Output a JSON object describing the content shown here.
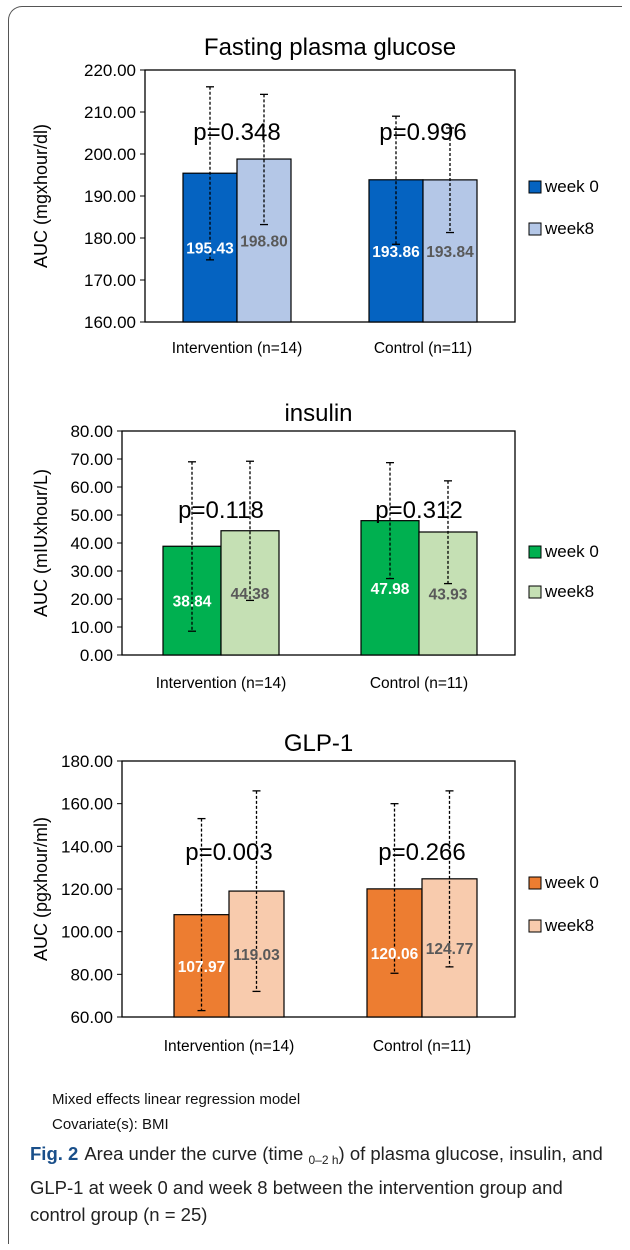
{
  "chart_data": [
    {
      "type": "bar",
      "title": "Fasting plasma glucose",
      "ylabel": "AUC (mgxhour/dl)",
      "ylim": [
        160,
        220
      ],
      "yticks": [
        "160.00",
        "170.00",
        "180.00",
        "190.00",
        "200.00",
        "210.00",
        "220.00"
      ],
      "categories": [
        "Intervention (n=14)",
        "Control (n=11)"
      ],
      "series": [
        {
          "name": "week 0",
          "values": [
            195.43,
            193.86
          ],
          "labels": [
            "195.43",
            "193.86"
          ],
          "err_low": [
            174.8,
            178.5
          ],
          "err_high": [
            216.0,
            209.0
          ]
        },
        {
          "name": "week8",
          "values": [
            198.8,
            193.84
          ],
          "labels": [
            "198.80",
            "193.84"
          ],
          "err_low": [
            183.2,
            181.3
          ],
          "err_high": [
            214.2,
            206.2
          ]
        }
      ],
      "annotations": [
        "p=0.348",
        "p=0.996"
      ],
      "legend": "right",
      "colors": {
        "week 0": "#0563c1",
        "week8": "#b4c7e7",
        "label_week0": "#ffffff",
        "label_week8": "#595959"
      }
    },
    {
      "type": "bar",
      "title": "insulin",
      "ylabel": "AUC (mIUxhour/L)",
      "ylim": [
        0,
        80
      ],
      "yticks": [
        "0.00",
        "10.00",
        "20.00",
        "30.00",
        "40.00",
        "50.00",
        "60.00",
        "70.00",
        "80.00"
      ],
      "categories": [
        "Intervention (n=14)",
        "Control (n=11)"
      ],
      "series": [
        {
          "name": "week 0",
          "values": [
            38.84,
            47.98
          ],
          "labels": [
            "38.84",
            "47.98"
          ],
          "err_low": [
            8.5,
            27.3
          ],
          "err_high": [
            69.0,
            68.7
          ]
        },
        {
          "name": "week8",
          "values": [
            44.38,
            43.93
          ],
          "labels": [
            "44.38",
            "43.93"
          ],
          "err_low": [
            19.5,
            25.5
          ],
          "err_high": [
            69.2,
            62.2
          ]
        }
      ],
      "annotations": [
        "p=0.118",
        "p=0.312"
      ],
      "legend": "right",
      "colors": {
        "week 0": "#00b050",
        "week8": "#c5e0b4",
        "label_week0": "#ffffff",
        "label_week8": "#595959"
      }
    },
    {
      "type": "bar",
      "title": "GLP-1",
      "ylabel": "AUC (pgxhour/ml)",
      "ylim": [
        60,
        180
      ],
      "yticks": [
        "60.00",
        "80.00",
        "100.00",
        "120.00",
        "140.00",
        "160.00",
        "180.00"
      ],
      "categories": [
        "Intervention (n=14)",
        "Control (n=11)"
      ],
      "series": [
        {
          "name": "week 0",
          "values": [
            107.97,
            120.06
          ],
          "labels": [
            "107.97",
            "120.06"
          ],
          "err_low": [
            63.0,
            80.5
          ],
          "err_high": [
            153.0,
            160.0
          ]
        },
        {
          "name": "week8",
          "values": [
            119.03,
            124.77
          ],
          "labels": [
            "119.03",
            "124.77"
          ],
          "err_low": [
            72.0,
            83.5
          ],
          "err_high": [
            166.0,
            166.0
          ]
        }
      ],
      "annotations": [
        "p=0.003",
        "p=0.266"
      ],
      "legend": "right",
      "colors": {
        "week 0": "#ed7d31",
        "week8": "#f8cbad",
        "label_week0": "#ffffff",
        "label_week8": "#595959"
      }
    }
  ],
  "notes": [
    "Mixed effects linear regression model",
    "Covariate(s): BMI"
  ],
  "caption": {
    "label": "Fig. 2",
    "text_before": "Area under the curve (time ",
    "subscript": "0–2 h",
    "text_after": ") of plasma glucose, insulin, and GLP-1 at week 0 and week 8 between the intervention group and control group (n = 25)"
  }
}
